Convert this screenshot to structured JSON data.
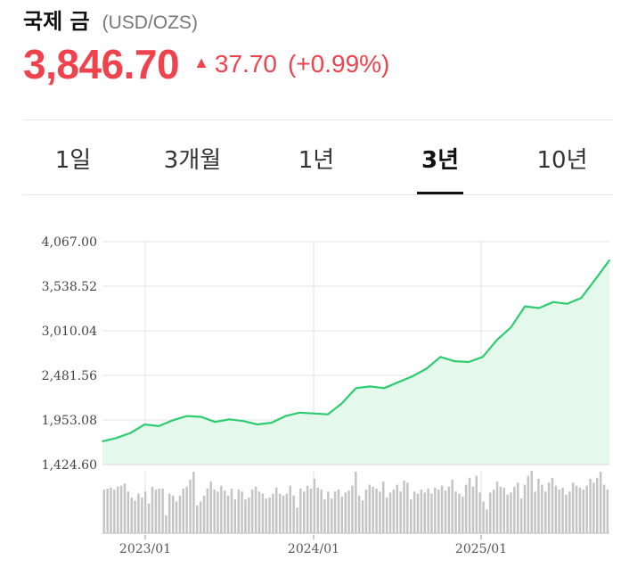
{
  "header": {
    "title": "국제 금",
    "unit": "(USD/OZS)",
    "price": "3,846.70",
    "change": "37.70",
    "change_pct": "(+0.99%)",
    "color_up": "#f0424d"
  },
  "tabs": [
    {
      "label": "1일",
      "active": false
    },
    {
      "label": "3개월",
      "active": false
    },
    {
      "label": "1년",
      "active": false
    },
    {
      "label": "3년",
      "active": true
    },
    {
      "label": "10년",
      "active": false
    }
  ],
  "chart_data": {
    "type": "area",
    "yticks": [
      "4,067.00",
      "3,538.52",
      "3,010.04",
      "2,481.56",
      "1,953.08",
      "1,424.60"
    ],
    "ylim": [
      1424.6,
      4067.0
    ],
    "xticks": [
      "2023/01",
      "2024/01",
      "2025/01"
    ],
    "line_color": "#2ecc71",
    "fill_color": "#e4f8ec",
    "series": [
      {
        "x": [
          "2022-10",
          "2022-11",
          "2022-12",
          "2023-01",
          "2023-02",
          "2023-03",
          "2023-04",
          "2023-05",
          "2023-06",
          "2023-07",
          "2023-08",
          "2023-09",
          "2023-10",
          "2023-11",
          "2023-12",
          "2024-01",
          "2024-02",
          "2024-03",
          "2024-04",
          "2024-05",
          "2024-06",
          "2024-07",
          "2024-08",
          "2024-09",
          "2024-10",
          "2024-11",
          "2024-12",
          "2025-01",
          "2025-02",
          "2025-03",
          "2025-04",
          "2025-05",
          "2025-06",
          "2025-07",
          "2025-08",
          "2025-09",
          "2025-10"
        ],
        "values": [
          1700,
          1740,
          1800,
          1900,
          1880,
          1950,
          2000,
          1990,
          1930,
          1960,
          1940,
          1900,
          1920,
          2000,
          2040,
          2030,
          2020,
          2150,
          2330,
          2350,
          2330,
          2400,
          2470,
          2560,
          2700,
          2650,
          2640,
          2700,
          2900,
          3050,
          3300,
          3280,
          3350,
          3330,
          3400,
          3620,
          3846.7
        ]
      }
    ]
  },
  "volume_data": {
    "values": [
      44,
      45,
      46,
      44,
      47,
      48,
      50,
      42,
      36,
      33,
      40,
      36,
      42,
      30,
      47,
      44,
      45,
      45,
      18,
      40,
      38,
      32,
      38,
      45,
      47,
      54,
      62,
      28,
      32,
      38,
      45,
      52,
      44,
      42,
      48,
      43,
      38,
      45,
      34,
      44,
      42,
      34,
      36,
      44,
      47,
      42,
      40,
      35,
      36,
      40,
      46,
      40,
      38,
      40,
      48,
      38,
      26,
      45,
      42,
      48,
      45,
      55,
      46,
      44,
      34,
      42,
      35,
      42,
      44,
      37,
      41,
      43,
      48,
      62,
      38,
      33,
      44,
      49,
      47,
      45,
      42,
      52,
      36,
      41,
      44,
      49,
      42,
      53,
      51,
      34,
      42,
      40,
      44,
      41,
      45,
      40,
      46,
      44,
      48,
      43,
      47,
      54,
      42,
      40,
      37,
      49,
      56,
      47,
      58,
      41,
      32,
      24,
      41,
      44,
      52,
      47,
      46,
      39,
      41,
      47,
      51,
      35,
      49,
      58,
      63,
      42,
      55,
      49,
      42,
      51,
      56,
      48,
      44,
      46,
      39,
      42,
      51,
      48,
      46,
      44,
      48,
      55,
      51,
      56,
      62,
      49,
      44
    ]
  }
}
